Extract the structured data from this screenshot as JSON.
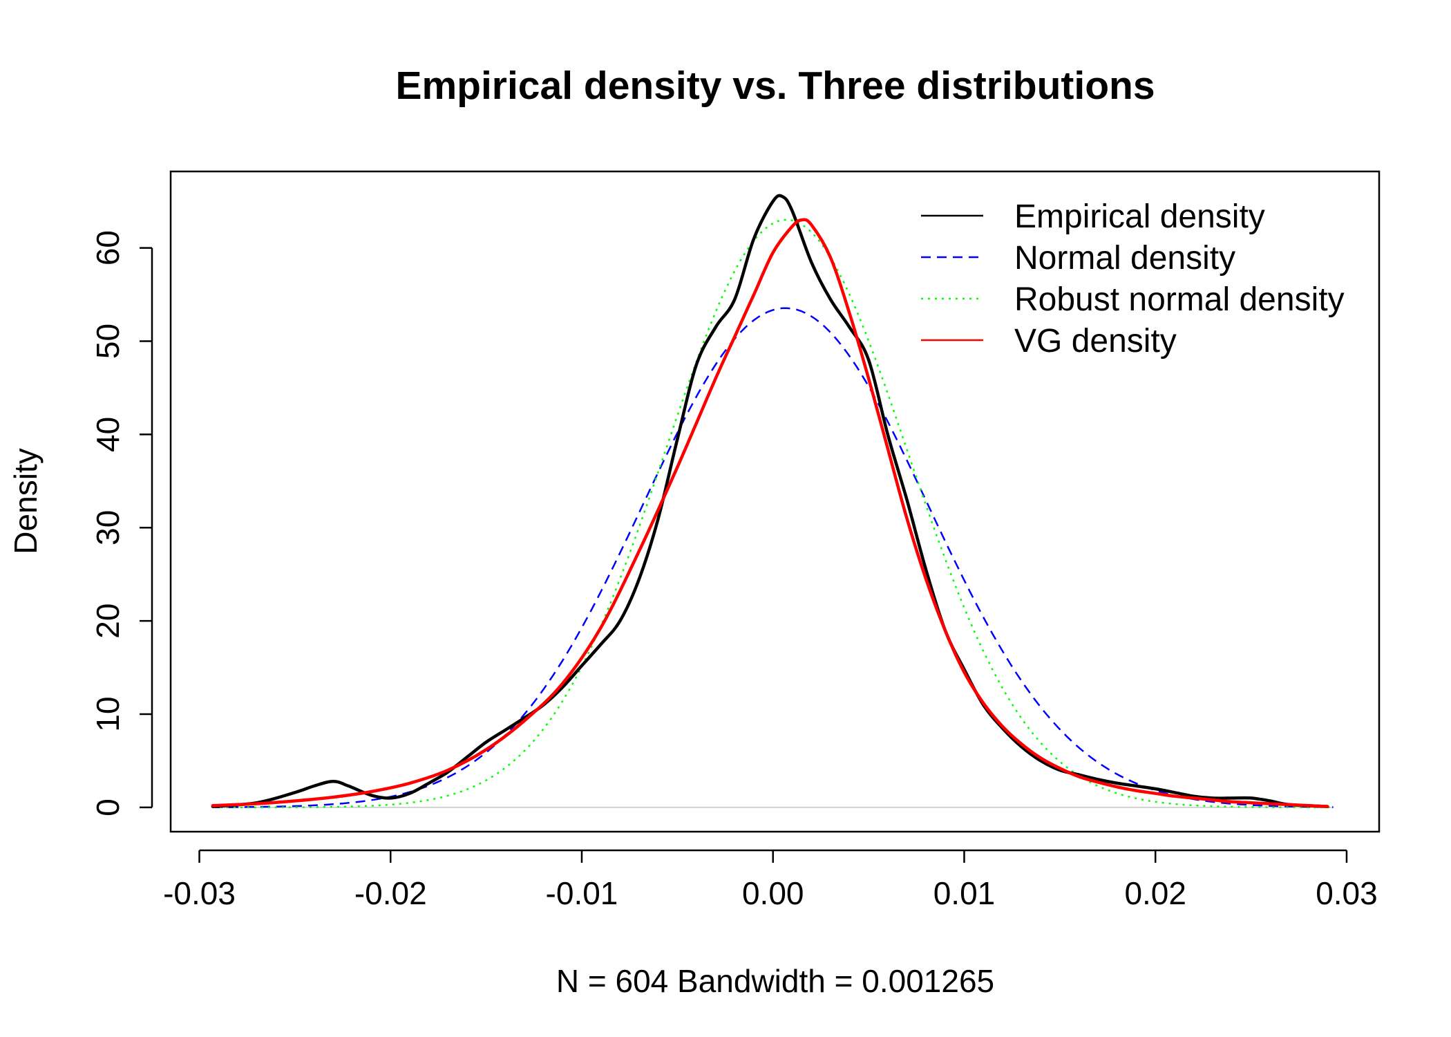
{
  "chart_data": {
    "type": "line",
    "title": "Empirical density vs. Three distributions",
    "xlabel": "N = 604   Bandwidth = 0.001265",
    "ylabel": "Density",
    "xlim": [
      -0.0315,
      0.0317
    ],
    "ylim": [
      -2.6,
      68.2
    ],
    "xticks": [
      -0.03,
      -0.02,
      -0.01,
      0.0,
      0.01,
      0.02,
      0.03
    ],
    "xtick_labels": [
      "-0.03",
      "-0.02",
      "-0.01",
      "0.00",
      "0.01",
      "0.02",
      "0.03"
    ],
    "yticks": [
      0,
      10,
      20,
      30,
      40,
      50,
      60
    ],
    "ytick_labels": [
      "0",
      "10",
      "20",
      "30",
      "40",
      "50",
      "60"
    ],
    "grid": false,
    "legend_position": "top-right",
    "baseline": 0,
    "series": [
      {
        "name": "Empirical density",
        "color": "#000000",
        "dash": "solid",
        "x": [
          -0.0293,
          -0.027,
          -0.025,
          -0.024,
          -0.023,
          -0.0222,
          -0.021,
          -0.02,
          -0.019,
          -0.018,
          -0.017,
          -0.016,
          -0.015,
          -0.014,
          -0.013,
          -0.012,
          -0.011,
          -0.01,
          -0.009,
          -0.008,
          -0.007,
          -0.006,
          -0.005,
          -0.004,
          -0.003,
          -0.002,
          -0.001,
          0.0,
          0.0005,
          0.001,
          0.002,
          0.003,
          0.004,
          0.005,
          0.006,
          0.007,
          0.008,
          0.009,
          0.01,
          0.011,
          0.012,
          0.013,
          0.014,
          0.015,
          0.016,
          0.017,
          0.018,
          0.019,
          0.02,
          0.021,
          0.022,
          0.023,
          0.024,
          0.025,
          0.026,
          0.027,
          0.029
        ],
        "y": [
          0.1,
          0.5,
          1.6,
          2.3,
          2.8,
          2.3,
          1.3,
          1.0,
          1.5,
          2.6,
          3.8,
          5.4,
          7.0,
          8.3,
          9.6,
          11.0,
          12.9,
          15.2,
          17.5,
          20.0,
          24.5,
          31.0,
          39.5,
          47.5,
          51.5,
          54.5,
          61.0,
          65.0,
          65.5,
          64.0,
          58.5,
          54.5,
          51.5,
          48.0,
          40.0,
          33.0,
          25.5,
          19.0,
          14.8,
          11.0,
          8.5,
          6.5,
          5.0,
          4.0,
          3.5,
          3.0,
          2.6,
          2.3,
          2.0,
          1.6,
          1.2,
          1.0,
          1.0,
          1.0,
          0.7,
          0.3,
          0.1
        ]
      },
      {
        "name": "Normal density",
        "color": "#0000ff",
        "dash": "dashed",
        "mean": 0.00065,
        "sd": 0.00745,
        "xrange": [
          -0.0293,
          0.0293
        ]
      },
      {
        "name": "Robust normal density",
        "color": "#00ff00",
        "dash": "dotted",
        "mean": 0.0007,
        "sd": 0.00633,
        "xrange": [
          -0.0293,
          0.0293
        ]
      },
      {
        "name": "VG density",
        "color": "#ff0000",
        "dash": "solid",
        "x": [
          -0.0293,
          -0.027,
          -0.025,
          -0.023,
          -0.021,
          -0.019,
          -0.017,
          -0.015,
          -0.013,
          -0.011,
          -0.009,
          -0.007,
          -0.005,
          -0.003,
          -0.002,
          -0.001,
          0.0,
          0.001,
          0.0015,
          0.002,
          0.003,
          0.004,
          0.005,
          0.006,
          0.007,
          0.008,
          0.009,
          0.01,
          0.011,
          0.012,
          0.013,
          0.014,
          0.015,
          0.016,
          0.017,
          0.018,
          0.019,
          0.02,
          0.021,
          0.022,
          0.023,
          0.024,
          0.025,
          0.027,
          0.029
        ],
        "y": [
          0.2,
          0.4,
          0.7,
          1.1,
          1.7,
          2.6,
          4.0,
          6.2,
          9.3,
          13.3,
          19.3,
          27.5,
          36.5,
          46.0,
          50.5,
          55.0,
          59.5,
          62.3,
          63.0,
          62.5,
          59.0,
          53.0,
          46.0,
          38.5,
          31.0,
          24.5,
          19.0,
          14.5,
          11.2,
          8.7,
          6.8,
          5.3,
          4.2,
          3.3,
          2.7,
          2.2,
          1.8,
          1.5,
          1.2,
          1.0,
          0.8,
          0.6,
          0.5,
          0.3,
          0.1
        ]
      }
    ]
  }
}
